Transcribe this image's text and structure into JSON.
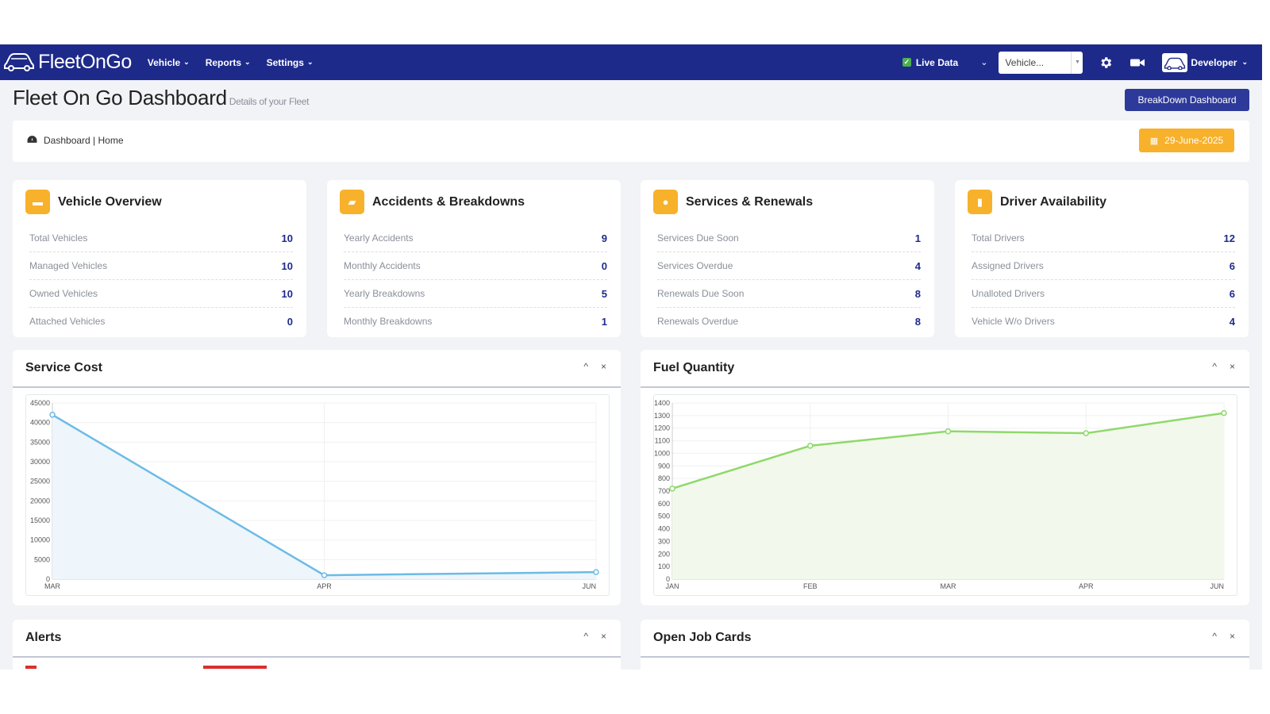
{
  "navbar": {
    "brand": "FleetOnGo",
    "menu": [
      {
        "label": "Vehicle"
      },
      {
        "label": "Reports"
      },
      {
        "label": "Settings"
      }
    ],
    "live_data_label": "Live Data",
    "vehicle_select": "Vehicle...",
    "user_name": "Developer"
  },
  "header": {
    "title": "Fleet On Go Dashboard",
    "subtitle": "Details of your Fleet",
    "breakdown_button": "BreakDown Dashboard"
  },
  "breadcrumb": {
    "text": "Dashboard | Home",
    "date": "29-June-2025"
  },
  "cards": [
    {
      "title": "Vehicle Overview",
      "icon": "truck-icon",
      "stats": [
        {
          "label": "Total Vehicles",
          "value": "10"
        },
        {
          "label": "Managed Vehicles",
          "value": "10"
        },
        {
          "label": "Owned Vehicles",
          "value": "10"
        },
        {
          "label": "Attached Vehicles",
          "value": "0"
        }
      ]
    },
    {
      "title": "Accidents & Breakdowns",
      "icon": "car-crash-icon",
      "stats": [
        {
          "label": "Yearly Accidents",
          "value": "9"
        },
        {
          "label": "Monthly Accidents",
          "value": "0"
        },
        {
          "label": "Yearly Breakdowns",
          "value": "5"
        },
        {
          "label": "Monthly Breakdowns",
          "value": "1"
        }
      ]
    },
    {
      "title": "Services & Renewals",
      "icon": "wrench-icon",
      "stats": [
        {
          "label": "Services Due Soon",
          "value": "1"
        },
        {
          "label": "Services Overdue",
          "value": "4"
        },
        {
          "label": "Renewals Due Soon",
          "value": "8"
        },
        {
          "label": "Renewals Overdue",
          "value": "8"
        }
      ]
    },
    {
      "title": "Driver Availability",
      "icon": "bar-chart-icon",
      "stats": [
        {
          "label": "Total Drivers",
          "value": "12"
        },
        {
          "label": "Assigned Drivers",
          "value": "6"
        },
        {
          "label": "Unalloted Drivers",
          "value": "6"
        },
        {
          "label": "Vehicle W/o Drivers",
          "value": "4"
        }
      ]
    }
  ],
  "panels": {
    "service_cost": {
      "title": "Service Cost"
    },
    "fuel_quantity": {
      "title": "Fuel Quantity"
    },
    "alerts": {
      "title": "Alerts"
    },
    "open_job_cards": {
      "title": "Open Job Cards"
    }
  },
  "controls": {
    "collapse": "^",
    "close": "×"
  },
  "colors": {
    "navbar": "#1e2a8a",
    "accent": "#f7b12b",
    "button": "#2d3a9a",
    "service_line": "#6cbbe6",
    "fuel_line": "#8ed96a"
  },
  "chart_data": [
    {
      "type": "line",
      "title": "Service Cost",
      "x": [
        "MAR",
        "APR",
        "JUN"
      ],
      "values": [
        42000,
        1000,
        1800
      ],
      "ylim": [
        0,
        45000
      ],
      "yticks": [
        0,
        5000,
        10000,
        15000,
        20000,
        25000,
        30000,
        35000,
        40000,
        45000
      ],
      "grid": true
    },
    {
      "type": "line",
      "title": "Fuel Quantity",
      "x": [
        "JAN",
        "FEB",
        "MAR",
        "APR",
        "JUN"
      ],
      "values": [
        720,
        1060,
        1175,
        1160,
        1320
      ],
      "ylim": [
        0,
        1400
      ],
      "yticks": [
        0,
        100,
        200,
        300,
        400,
        500,
        600,
        700,
        800,
        900,
        1000,
        1100,
        1200,
        1300,
        1400
      ],
      "grid": true
    }
  ]
}
